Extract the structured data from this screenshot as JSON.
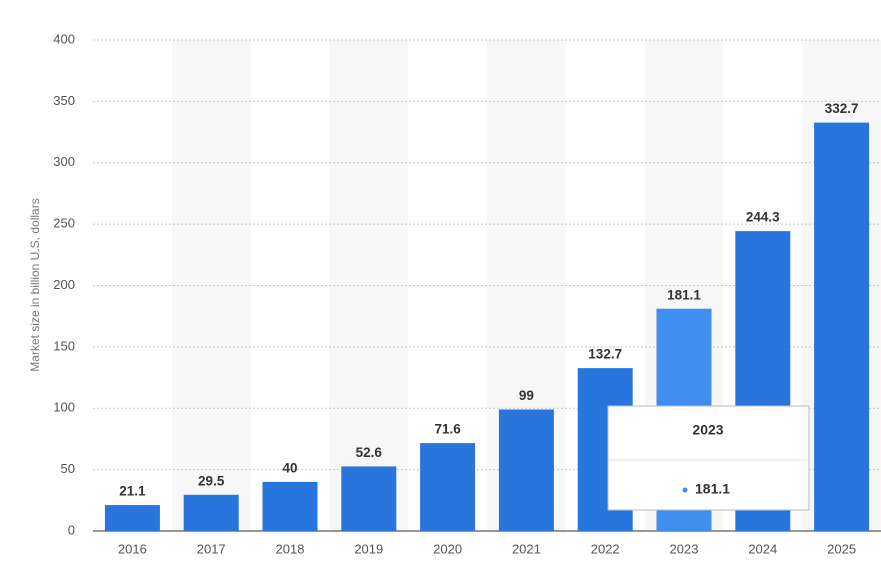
{
  "chart_data": {
    "type": "bar",
    "y_label": "Market size in billion U.S. dollars",
    "categories": [
      "2016",
      "2017",
      "2018",
      "2019",
      "2020",
      "2021",
      "2022",
      "2023",
      "2024",
      "2025"
    ],
    "values": [
      21.1,
      29.5,
      40,
      52.6,
      71.6,
      99,
      132.7,
      181.1,
      244.3,
      332.7
    ],
    "colors": [
      "#2876dd",
      "#2876dd",
      "#2876dd",
      "#2876dd",
      "#2876dd",
      "#2876dd",
      "#2876dd",
      "#3f8ef0",
      "#2876dd",
      "#2876dd"
    ],
    "tooltip_index": 7,
    "ylim": [
      0,
      400
    ],
    "yticks": [
      0,
      50,
      100,
      150,
      200,
      250,
      300,
      350,
      400
    ],
    "grid": true
  }
}
